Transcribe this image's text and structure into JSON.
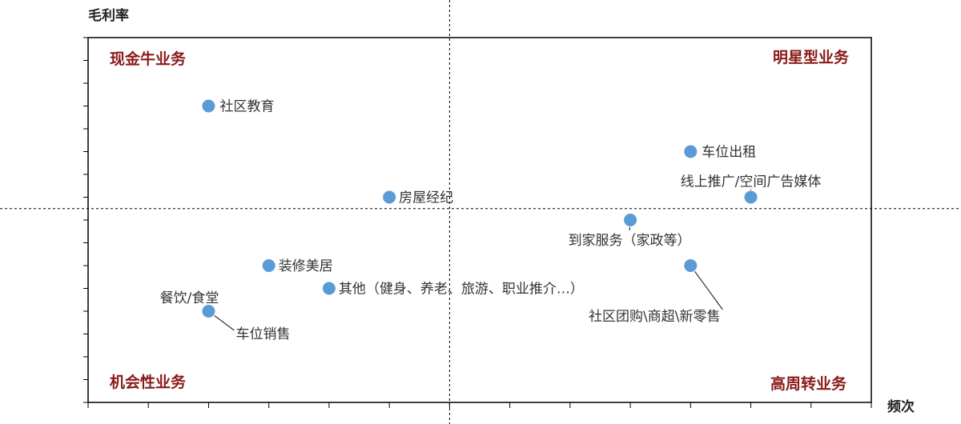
{
  "chart_data": {
    "type": "scatter",
    "xlabel": "频次",
    "ylabel": "毛利率",
    "xlim": [
      0,
      13
    ],
    "ylim": [
      0,
      16
    ],
    "x_ticks": [
      0,
      1,
      2,
      3,
      4,
      5,
      6,
      7,
      8,
      9,
      10,
      11,
      12,
      13
    ],
    "y_ticks": [
      0,
      1,
      2,
      3,
      4,
      5,
      6,
      7,
      8,
      9,
      10,
      11,
      12,
      13,
      14,
      15,
      16
    ],
    "quadrant_divider": {
      "x": 6,
      "y": 8.5
    },
    "quadrants": {
      "top_left": "现金牛业务",
      "top_right": "明星型业务",
      "bottom_left": "机会性业务",
      "bottom_right": "高周转业务"
    },
    "points": [
      {
        "label": "社区教育",
        "x": 2,
        "y": 13
      },
      {
        "label": "车位出租",
        "x": 10,
        "y": 11
      },
      {
        "label": "线上推广/空间广告媒体",
        "x": 11,
        "y": 9
      },
      {
        "label": "房屋经纪",
        "x": 5,
        "y": 9
      },
      {
        "label": "到家服务（家政等）",
        "x": 9,
        "y": 8
      },
      {
        "label": "装修美居",
        "x": 3,
        "y": 6
      },
      {
        "label": "社区团购\\商超\\新零售",
        "x": 10,
        "y": 6
      },
      {
        "label": "其他（健身、养老、旅游、职业推介…）",
        "x": 4,
        "y": 5
      },
      {
        "label": "餐饮/食堂",
        "x": 2,
        "y": 4
      },
      {
        "label": "车位销售",
        "x": 2,
        "y": 4
      }
    ],
    "grid": false,
    "marker_color": "#5b9bd5",
    "quadrant_label_color": "#8b1a1a"
  }
}
